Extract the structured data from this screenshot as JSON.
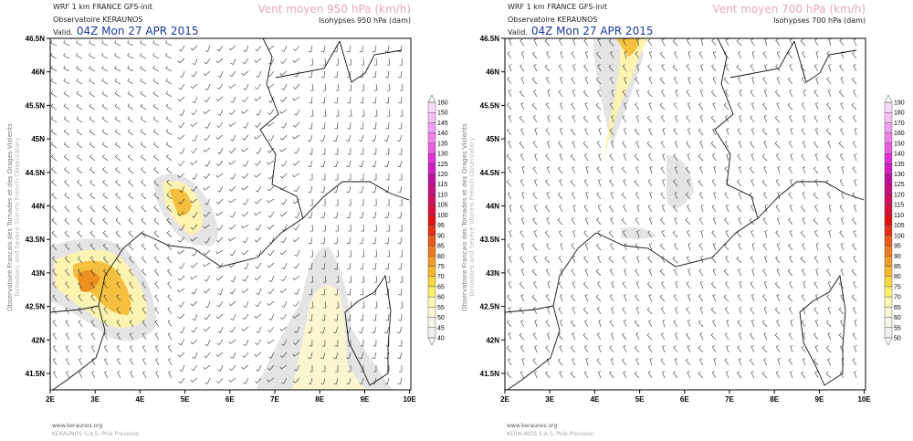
{
  "panels": [
    {
      "model": "WRF 1 km FRANCE  GFS-init",
      "org": "Observatoire KERAUNOS",
      "valid_label": "Valid.",
      "valid": "04Z Mon 27 APR 2015",
      "title": "Vent moyen 950 hPa (km/h)",
      "subtitle": "Isohypses 950 hPa (dam)",
      "colorbar": {
        "labels": [
          "40",
          "45",
          "50",
          "55",
          "60",
          "65",
          "70",
          "75",
          "80",
          "85",
          "90",
          "95",
          "100",
          "105",
          "110",
          "115",
          "120",
          "125",
          "130",
          "135",
          "140",
          "145",
          "150",
          "160"
        ]
      }
    },
    {
      "model": "WRF 1 km FRANCE  GFS-init",
      "org": "Observatoire KERAUNOS",
      "valid_label": "Valid.",
      "valid": "04Z Mon 27 APR 2015",
      "title": "Vent moyen 700 hPa (km/h)",
      "subtitle": "Isohypses 700 hPa (dam)",
      "colorbar": {
        "labels": [
          "50",
          "55",
          "60",
          "65",
          "70",
          "75",
          "80",
          "85",
          "90",
          "95",
          "100",
          "105",
          "110",
          "115",
          "120",
          "125",
          "130",
          "135",
          "140",
          "150",
          "160",
          "170",
          "180",
          "190"
        ]
      }
    }
  ],
  "lat_ticks": [
    "46.5N",
    "46N",
    "45.5N",
    "45N",
    "44.5N",
    "44N",
    "43.5N",
    "43N",
    "42.5N",
    "42N",
    "41.5N"
  ],
  "lon_ticks": [
    "2E",
    "3E",
    "4E",
    "5E",
    "6E",
    "7E",
    "8E",
    "9E",
    "10E"
  ],
  "side_text": "Observatoire Francais des Tornades et des Orages Violents",
  "side_text2": "Tornadoes and Severe Storms French Observatory",
  "footer": {
    "url": "www.keraunos.org",
    "company": "KERAUNOS S.A.S. Pole Prevision"
  },
  "colors": {
    "title": "#e8a8b0",
    "valid": "#1a3a9a"
  }
}
